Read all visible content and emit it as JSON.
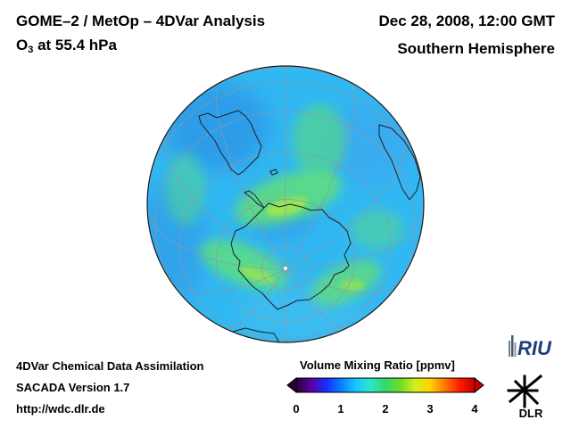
{
  "header": {
    "title": "GOME–2 / MetOp – 4DVar Analysis",
    "species_main": "O",
    "species_sub": "3",
    "pressure_level": "at 55.4 hPa",
    "date": "Dec 28, 2008, 12:00 GMT",
    "hemisphere": "Southern Hemisphere"
  },
  "footer": {
    "line1": "4DVar Chemical Data Assimilation",
    "line2": "SACADA Version 1.7",
    "line3": "http://wdc.dlr.de"
  },
  "colorbar": {
    "title": "Volume Mixing Ratio [ppmv]",
    "min": 0,
    "max": 4,
    "ticks": [
      "0",
      "1",
      "2",
      "3",
      "4"
    ],
    "colors": [
      "#2b0033",
      "#5a00a0",
      "#1a2cff",
      "#0a7cff",
      "#15c6ff",
      "#2ee6c8",
      "#33d96a",
      "#6fdc27",
      "#d4ee1a",
      "#ffd400",
      "#ff7a00",
      "#ff1a00",
      "#c80000"
    ]
  },
  "logos": {
    "riu": "RIU",
    "dlr": "DLR"
  },
  "map": {
    "projection": "orthographic",
    "center": "South Pole",
    "colors": {
      "ocean_base": "#31b8f2",
      "high_ozone": "#5fe07a",
      "low_ozone": "#2f93e6",
      "coastline": "#1f1f28",
      "graticule": "#8c98a6"
    }
  }
}
